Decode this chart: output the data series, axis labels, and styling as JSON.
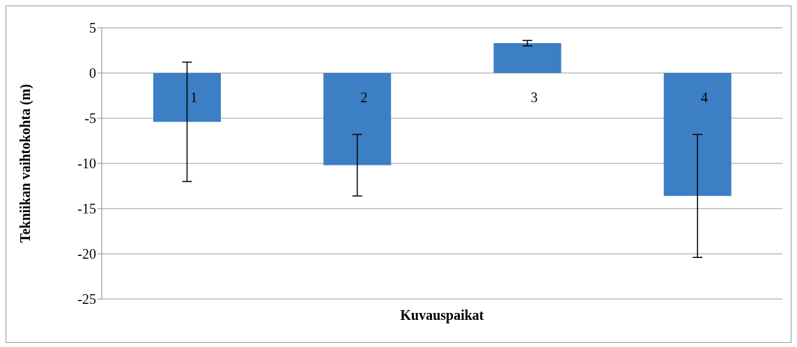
{
  "chart_data": {
    "type": "bar",
    "xlabel": "Kuvauspaikat",
    "ylabel": "Tekniikan vaihtokohta (m)",
    "categories": [
      "1",
      "2",
      "3",
      "4"
    ],
    "values": [
      -5.4,
      -10.2,
      3.3,
      -13.6
    ],
    "errors": [
      6.6,
      3.4,
      0.3,
      6.8
    ],
    "color": "#3c7fc4",
    "ylim": [
      -25,
      5
    ],
    "yticks": [
      -25,
      -20,
      -15,
      -10,
      -5,
      0,
      5
    ],
    "grid": "y",
    "legend": false
  }
}
